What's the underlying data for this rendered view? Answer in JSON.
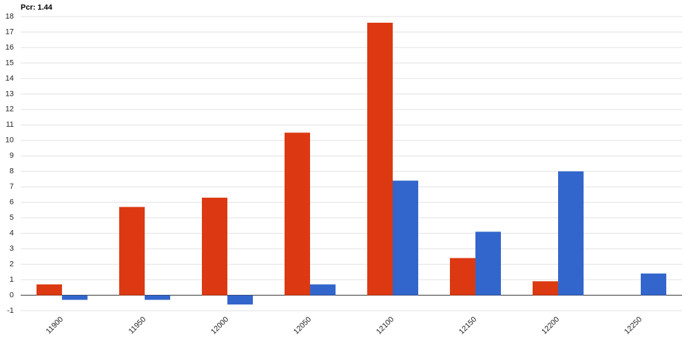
{
  "chart_data": {
    "type": "bar",
    "title": "Pcr: 1.44",
    "categories": [
      "11900",
      "11950",
      "12000",
      "12050",
      "12100",
      "12150",
      "12200",
      "12250"
    ],
    "series": [
      {
        "color": "#dc3912",
        "values": [
          0.7,
          5.7,
          6.3,
          10.5,
          17.6,
          2.4,
          0.9,
          null
        ]
      },
      {
        "color": "#3366cc",
        "values": [
          -0.3,
          -0.3,
          -0.6,
          0.7,
          7.4,
          4.1,
          8,
          1.4
        ]
      }
    ],
    "ylim": [
      -1,
      18
    ],
    "yticks": [
      -1,
      0,
      1,
      2,
      3,
      4,
      5,
      6,
      7,
      8,
      9,
      10,
      11,
      12,
      13,
      14,
      15,
      16,
      17,
      18
    ],
    "grid": true
  }
}
